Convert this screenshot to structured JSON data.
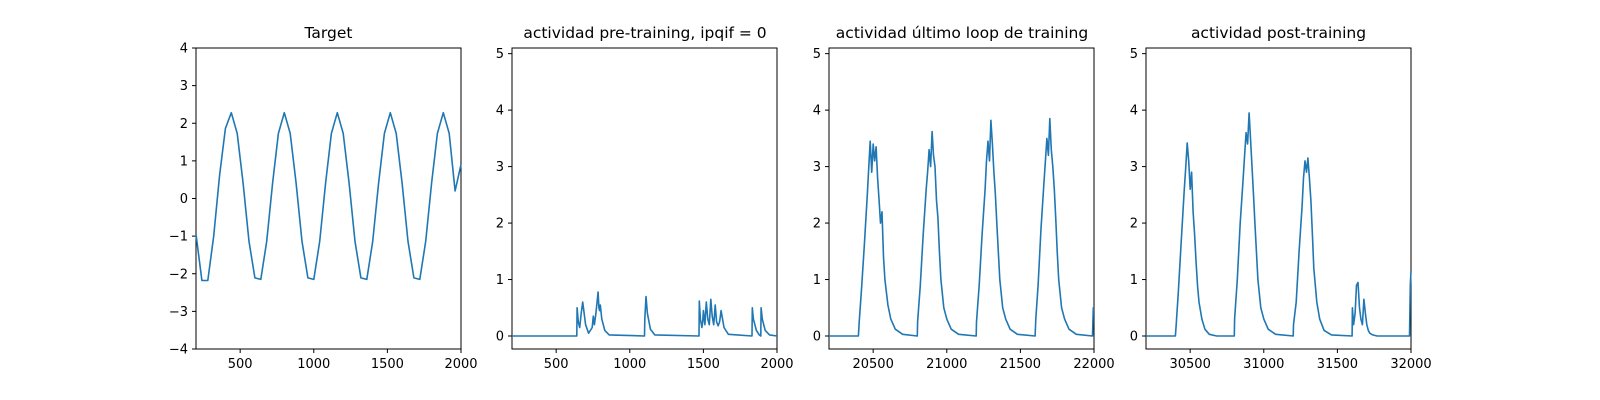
{
  "chart_data": [
    {
      "type": "line",
      "title": "Target",
      "xlim": [
        200,
        2000
      ],
      "ylim": [
        -4,
        4
      ],
      "xticks": [
        500,
        1000,
        1500,
        2000
      ],
      "yticks": [
        -4,
        -3,
        -2,
        -1,
        0,
        1,
        2,
        3,
        4
      ],
      "color": "#1f77b4",
      "series": [
        {
          "x": [
            200,
            240,
            280,
            320,
            360,
            400,
            440,
            480,
            520,
            560,
            600,
            640,
            680,
            720,
            760,
            800,
            840,
            880,
            920,
            960,
            1000,
            1040,
            1080,
            1120,
            1160,
            1200,
            1240,
            1280,
            1320,
            1360,
            1400,
            1440,
            1480,
            1520,
            1560,
            1600,
            1640,
            1680,
            1720,
            1760,
            1800,
            1840,
            1880,
            1920,
            1960,
            2000
          ],
          "y": [
            -0.95,
            -2.18,
            -2.18,
            -1.0,
            0.62,
            1.86,
            2.28,
            1.73,
            0.41,
            -1.14,
            -2.11,
            -2.15,
            -1.14,
            0.41,
            1.73,
            2.28,
            1.73,
            0.41,
            -1.14,
            -2.11,
            -2.15,
            -1.14,
            0.41,
            1.73,
            2.28,
            1.73,
            0.41,
            -1.14,
            -2.11,
            -2.15,
            -1.14,
            0.41,
            1.73,
            2.28,
            1.73,
            0.41,
            -1.14,
            -2.11,
            -2.15,
            -1.14,
            0.41,
            1.73,
            2.28,
            1.73,
            0.2,
            0.9
          ]
        }
      ]
    },
    {
      "type": "line",
      "title": "actividad pre-training, ipqif = 0",
      "xlim": [
        200,
        2000
      ],
      "ylim": [
        -0.23,
        5.1
      ],
      "xticks": [
        500,
        1000,
        1500,
        2000
      ],
      "yticks": [
        0,
        1,
        2,
        3,
        4,
        5
      ],
      "color": "#1f77b4",
      "series": [
        {
          "x": [
            200,
            640,
            642,
            650,
            660,
            670,
            680,
            700,
            720,
            745,
            752,
            760,
            770,
            785,
            790,
            795,
            800,
            810,
            830,
            860,
            1100,
            1102,
            1106,
            1110,
            1120,
            1140,
            1170,
            1470,
            1472,
            1480,
            1490,
            1495,
            1500,
            1510,
            1520,
            1530,
            1540,
            1550,
            1560,
            1570,
            1575,
            1580,
            1590,
            1600,
            1610,
            1620,
            1640,
            1670,
            1830,
            1832,
            1840,
            1860,
            1880,
            1890,
            1892,
            1900,
            1920,
            1950,
            2000
          ],
          "y": [
            0,
            0,
            0.5,
            0.25,
            0.15,
            0.4,
            0.6,
            0.2,
            0.05,
            0.15,
            0.35,
            0.2,
            0.4,
            0.78,
            0.5,
            0.45,
            0.55,
            0.3,
            0.1,
            0.02,
            0,
            0.3,
            0.5,
            0.7,
            0.4,
            0.12,
            0.02,
            0,
            0.62,
            0.3,
            0.15,
            0.25,
            0.45,
            0.2,
            0.6,
            0.3,
            0.2,
            0.65,
            0.35,
            0.2,
            0.35,
            0.55,
            0.25,
            0.18,
            0.25,
            0.45,
            0.15,
            0.03,
            0,
            0.5,
            0.3,
            0.1,
            0.02,
            0,
            0.5,
            0.3,
            0.1,
            0.02,
            0
          ]
        }
      ]
    },
    {
      "type": "line",
      "title": "actividad último loop de training",
      "xlim": [
        20200,
        22000
      ],
      "ylim": [
        -0.23,
        5.1
      ],
      "xticks": [
        20500,
        21000,
        21500,
        22000
      ],
      "yticks": [
        0,
        1,
        2,
        3,
        4,
        5
      ],
      "color": "#1f77b4",
      "series": [
        {
          "x": [
            20200,
            20400,
            20405,
            20420,
            20440,
            20460,
            20470,
            20480,
            20490,
            20500,
            20510,
            20520,
            20530,
            20540,
            20550,
            20560,
            20570,
            20580,
            20600,
            20620,
            20650,
            20700,
            20800,
            20802,
            20820,
            20840,
            20860,
            20870,
            20880,
            20890,
            20900,
            20910,
            20920,
            20930,
            20940,
            20950,
            20960,
            20980,
            21000,
            21030,
            21080,
            21200,
            21202,
            21220,
            21240,
            21260,
            21270,
            21280,
            21290,
            21300,
            21310,
            21320,
            21330,
            21340,
            21350,
            21360,
            21380,
            21400,
            21430,
            21480,
            21600,
            21605,
            21620,
            21640,
            21660,
            21670,
            21680,
            21690,
            21700,
            21710,
            21720,
            21730,
            21740,
            21750,
            21760,
            21780,
            21800,
            21830,
            21880,
            21990,
            21995,
            22000
          ],
          "y": [
            0,
            0,
            0.25,
            0.8,
            1.6,
            2.5,
            3.0,
            3.45,
            2.9,
            3.4,
            3.1,
            3.35,
            2.8,
            2.4,
            2.0,
            2.2,
            1.4,
            1.0,
            0.55,
            0.3,
            0.12,
            0.03,
            0,
            0.25,
            0.9,
            1.8,
            2.6,
            2.9,
            3.3,
            3.0,
            3.62,
            3.2,
            3.0,
            2.4,
            2.1,
            1.5,
            1.0,
            0.5,
            0.3,
            0.12,
            0.03,
            0,
            0.25,
            0.9,
            1.8,
            2.6,
            3.1,
            3.45,
            3.1,
            3.82,
            3.4,
            2.9,
            2.5,
            2.0,
            1.5,
            1.0,
            0.5,
            0.3,
            0.12,
            0.03,
            0,
            0.3,
            0.9,
            1.9,
            2.7,
            3.1,
            3.5,
            3.2,
            3.85,
            3.3,
            3.0,
            2.6,
            2.1,
            1.5,
            1.0,
            0.5,
            0.3,
            0.12,
            0.03,
            0,
            0.5,
            0.5
          ]
        }
      ]
    },
    {
      "type": "line",
      "title": "actividad post-training",
      "xlim": [
        30200,
        32000
      ],
      "ylim": [
        -0.23,
        5.1
      ],
      "xticks": [
        30500,
        31000,
        31500,
        32000
      ],
      "yticks": [
        0,
        1,
        2,
        3,
        4,
        5
      ],
      "color": "#1f77b4",
      "series": [
        {
          "x": [
            30200,
            30400,
            30405,
            30420,
            30440,
            30460,
            30470,
            30480,
            30490,
            30500,
            30510,
            30520,
            30530,
            30540,
            30550,
            30560,
            30580,
            30600,
            30630,
            30680,
            30800,
            30802,
            30820,
            30840,
            30860,
            30870,
            30880,
            30890,
            30900,
            30910,
            30920,
            30930,
            30940,
            30950,
            30960,
            30980,
            31000,
            31030,
            31080,
            31200,
            31202,
            31220,
            31240,
            31260,
            31270,
            31280,
            31290,
            31300,
            31310,
            31320,
            31330,
            31340,
            31360,
            31380,
            31410,
            31460,
            31600,
            31602,
            31610,
            31620,
            31630,
            31640,
            31650,
            31660,
            31670,
            31680,
            31690,
            31700,
            31710,
            31720,
            31740,
            31770,
            31820,
            31990,
            31995,
            32000
          ],
          "y": [
            0,
            0,
            0.2,
            0.8,
            1.7,
            2.6,
            3.0,
            3.42,
            3.1,
            2.6,
            2.9,
            2.2,
            1.8,
            1.3,
            0.9,
            0.6,
            0.3,
            0.12,
            0.03,
            0,
            0,
            0.3,
            1.0,
            2.0,
            2.8,
            3.2,
            3.6,
            3.4,
            3.95,
            3.5,
            3.0,
            2.5,
            2.0,
            1.5,
            1.0,
            0.5,
            0.3,
            0.12,
            0.03,
            0,
            0.2,
            0.6,
            1.5,
            2.3,
            2.8,
            3.1,
            2.9,
            3.15,
            2.8,
            2.4,
            1.8,
            1.2,
            0.6,
            0.3,
            0.1,
            0.02,
            0,
            0.5,
            0.2,
            0.4,
            0.9,
            0.95,
            0.5,
            0.3,
            0.2,
            0.65,
            0.4,
            0.2,
            0.1,
            0.05,
            0.02,
            0,
            0,
            0,
            0.9,
            1.15
          ]
        }
      ]
    }
  ]
}
